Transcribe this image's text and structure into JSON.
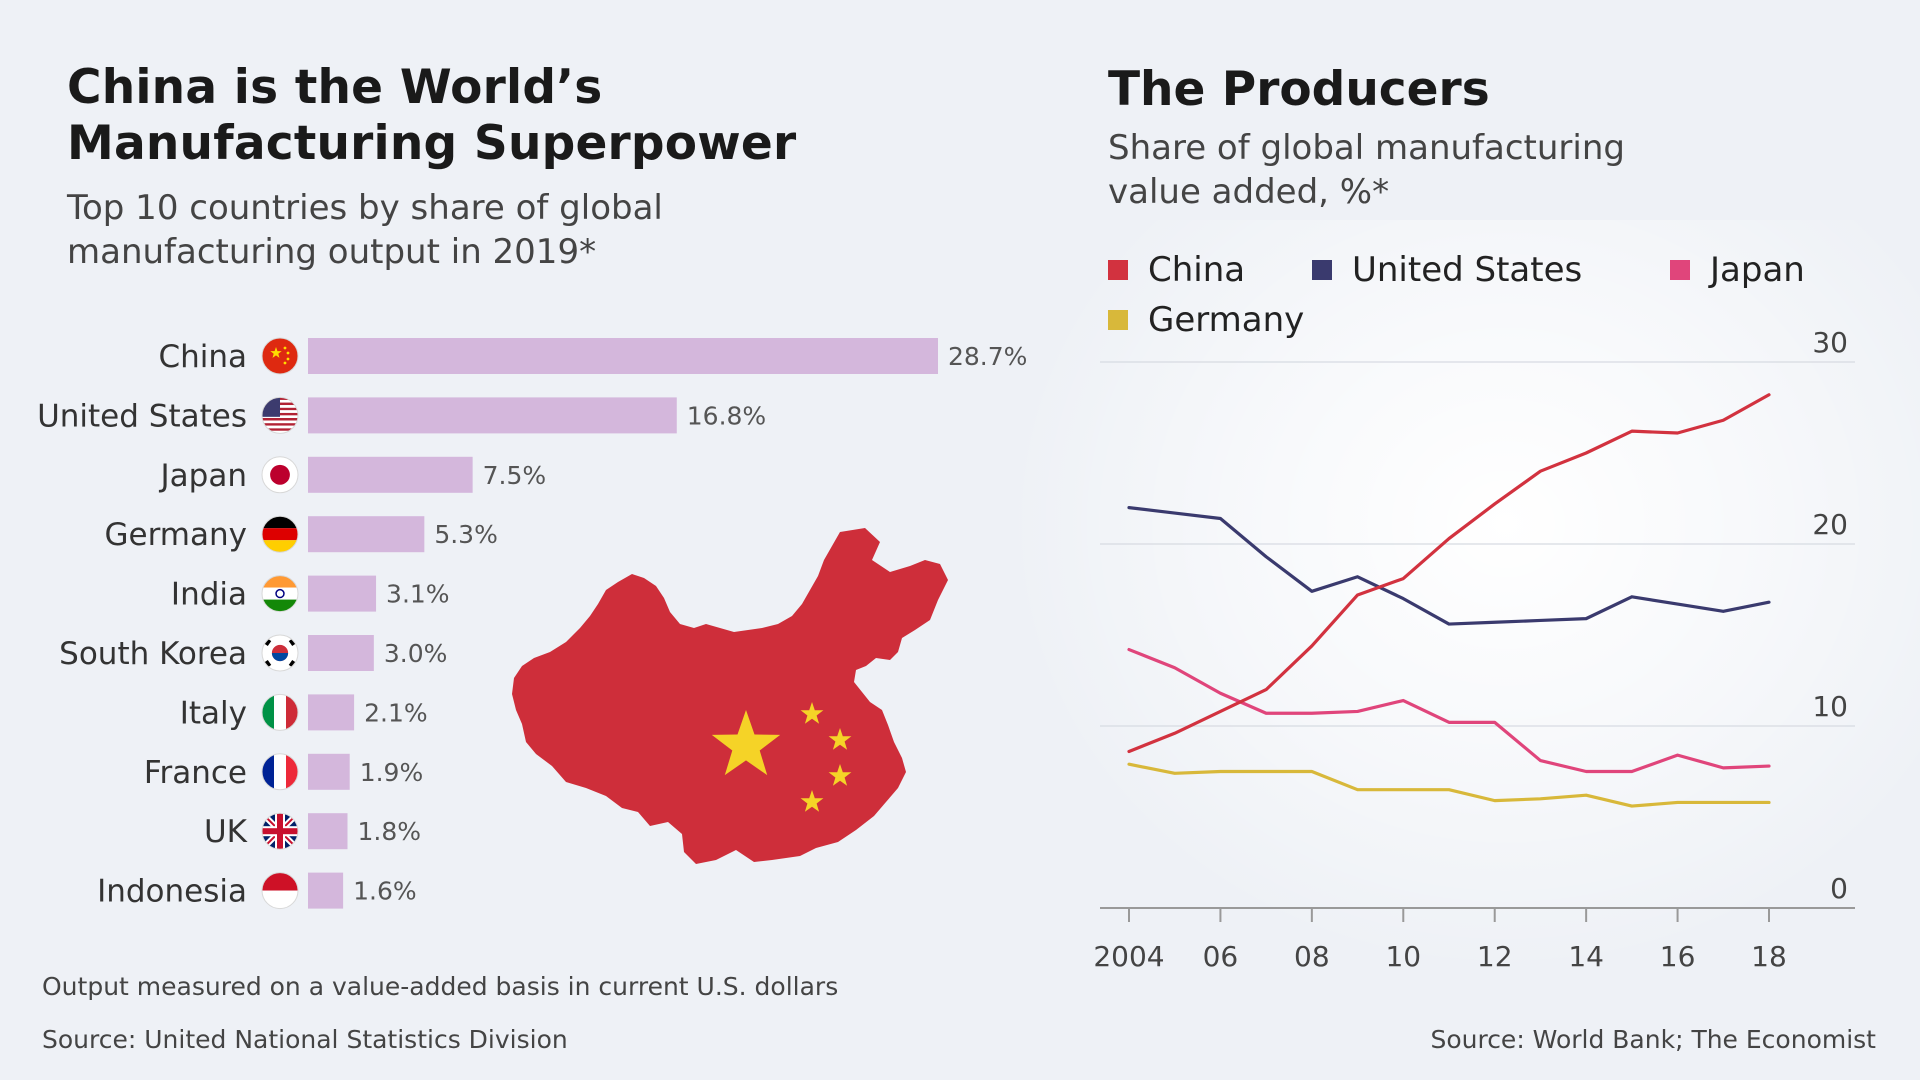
{
  "left": {
    "title": "China is the World’s\nManufacturing Superpower",
    "subtitle": "Top 10 countries by share of global\nmanufacturing output in 2019*",
    "note": "Output measured on a value-added basis in current U.S. dollars",
    "source": "Source: United National Statistics Division"
  },
  "right": {
    "title": "The Producers",
    "subtitle": "Share of global manufacturing\nvalue added, %*",
    "source": "Source: World Bank; The Economist"
  },
  "colors": {
    "bar": "#d4b7dc",
    "china": "#d2323f",
    "united_states": "#3a3a6e",
    "japan": "#e0457b",
    "germany": "#d8b83a",
    "map_red": "#ce2e3a",
    "map_star": "#f5d327"
  },
  "chart_data": [
    {
      "type": "bar",
      "orientation": "horizontal",
      "title": "China is the World’s Manufacturing Superpower",
      "subtitle": "Top 10 countries by share of global manufacturing output in 2019*",
      "categories": [
        "China",
        "United States",
        "Japan",
        "Germany",
        "India",
        "South Korea",
        "Italy",
        "France",
        "UK",
        "Indonesia"
      ],
      "values": [
        28.7,
        16.8,
        7.5,
        5.3,
        3.1,
        3.0,
        2.1,
        1.9,
        1.8,
        1.6
      ],
      "value_labels": [
        "28.7%",
        "16.8%",
        "7.5%",
        "5.3%",
        "3.1%",
        "3.0%",
        "2.1%",
        "1.9%",
        "1.8%",
        "1.6%"
      ],
      "flag_icons": [
        "china-flag-icon",
        "us-flag-icon",
        "japan-flag-icon",
        "germany-flag-icon",
        "india-flag-icon",
        "south-korea-flag-icon",
        "italy-flag-icon",
        "france-flag-icon",
        "uk-flag-icon",
        "indonesia-flag-icon"
      ],
      "xlim": [
        0,
        28.7
      ]
    },
    {
      "type": "line",
      "title": "The Producers",
      "subtitle": "Share of global manufacturing value added, %*",
      "x": [
        2004,
        2005,
        2006,
        2007,
        2008,
        2009,
        2010,
        2011,
        2012,
        2013,
        2014,
        2015,
        2016,
        2017,
        2018
      ],
      "xticks": [
        2004,
        2006,
        2008,
        2010,
        2012,
        2014,
        2016,
        2018
      ],
      "xtick_labels": [
        "2004",
        "06",
        "08",
        "10",
        "12",
        "14",
        "16",
        "18"
      ],
      "yticks": [
        0,
        10,
        20,
        30
      ],
      "ytick_labels": [
        "0",
        "10",
        "20",
        "30"
      ],
      "ylim": [
        0,
        30
      ],
      "y_axis_position": "right",
      "legend_position": "top",
      "series": [
        {
          "name": "China",
          "color_key": "china",
          "values": [
            8.6,
            9.6,
            10.8,
            12.0,
            14.4,
            17.2,
            18.1,
            20.3,
            22.2,
            24.0,
            25.0,
            26.2,
            26.1,
            26.8,
            28.2
          ]
        },
        {
          "name": "United States",
          "color_key": "united_states",
          "values": [
            22.0,
            21.7,
            21.4,
            19.3,
            17.4,
            18.2,
            17.0,
            15.6,
            15.7,
            15.8,
            15.9,
            17.1,
            16.7,
            16.3,
            16.8
          ]
        },
        {
          "name": "Japan",
          "color_key": "japan",
          "values": [
            14.2,
            13.2,
            11.8,
            10.7,
            10.7,
            10.8,
            11.4,
            10.2,
            10.2,
            8.1,
            7.5,
            7.5,
            8.4,
            7.7,
            7.8
          ]
        },
        {
          "name": "Germany",
          "color_key": "germany",
          "values": [
            7.9,
            7.4,
            7.5,
            7.5,
            7.5,
            6.5,
            6.5,
            6.5,
            5.9,
            6.0,
            6.2,
            5.6,
            5.8,
            5.8,
            5.8
          ]
        }
      ]
    }
  ]
}
